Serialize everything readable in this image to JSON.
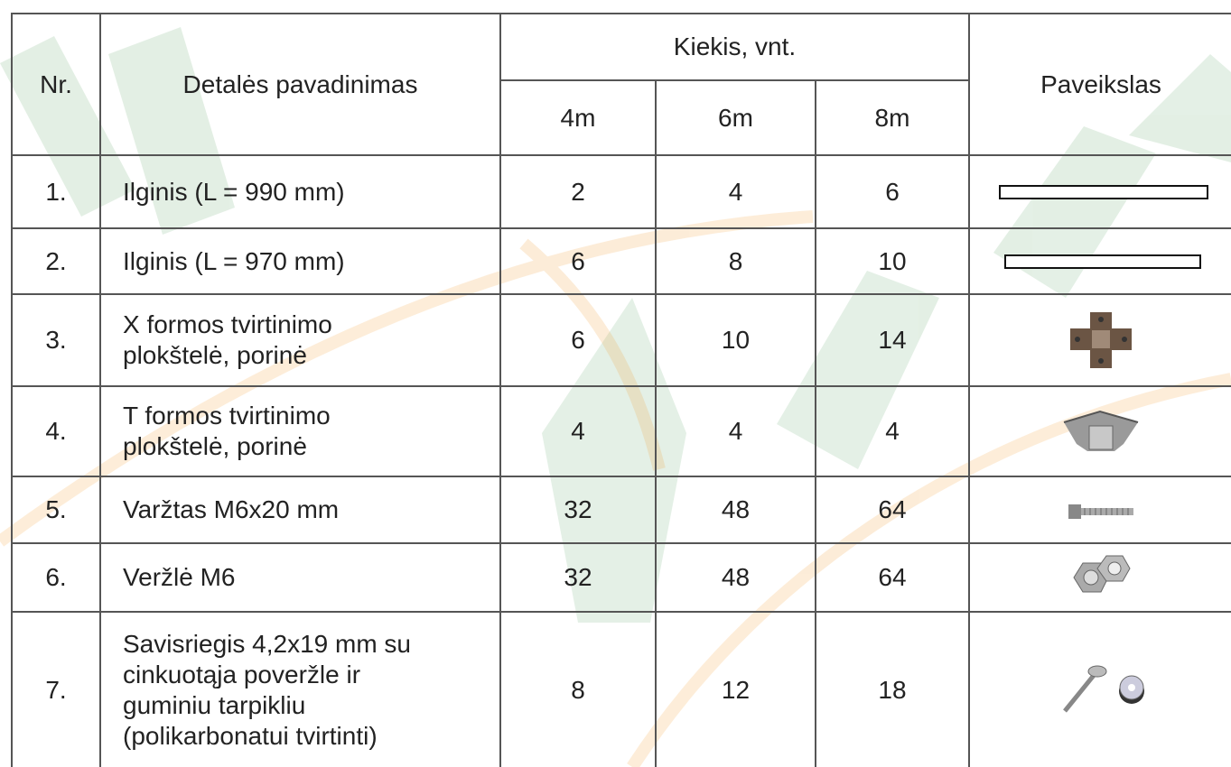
{
  "table": {
    "header": {
      "nr": "Nr.",
      "name": "Detalės pavadinimas",
      "quantity": "Kiekis, vnt.",
      "sizes": [
        "4m",
        "6m",
        "8m"
      ],
      "picture": "Paveikslas"
    },
    "rows": [
      {
        "nr": "1.",
        "name": [
          "Ilginis (L = 990 mm)"
        ],
        "quantities": [
          2,
          4,
          6
        ]
      },
      {
        "nr": "2.",
        "name": [
          "Ilginis (L = 970 mm)"
        ],
        "quantities": [
          6,
          8,
          10
        ]
      },
      {
        "nr": "3.",
        "name": [
          "X formos tvirtinimo",
          "plokštelė, porinė"
        ],
        "quantities": [
          6,
          10,
          14
        ]
      },
      {
        "nr": "4.",
        "name": [
          "T formos tvirtinimo",
          "plokštelė, porinė"
        ],
        "quantities": [
          4,
          4,
          4
        ]
      },
      {
        "nr": "5.",
        "name": [
          "Varžtas M6x20 mm"
        ],
        "quantities": [
          32,
          48,
          64
        ]
      },
      {
        "nr": "6.",
        "name": [
          "Veržlė M6"
        ],
        "quantities": [
          32,
          48,
          64
        ]
      },
      {
        "nr": "7.",
        "name": [
          "Savisriegis 4,2x19 mm su",
          "cinkuotąja poveržle ir",
          "guminiu tarpikliu",
          "(polikarbonatui tvirtinti)"
        ],
        "quantities": [
          8,
          12,
          18
        ]
      }
    ]
  }
}
